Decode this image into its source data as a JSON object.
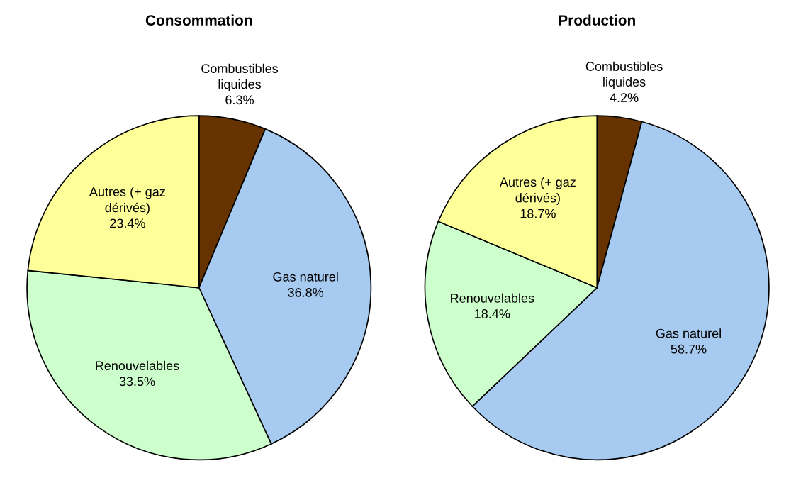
{
  "chart_data": [
    {
      "type": "pie",
      "title": "Consommation",
      "categories": [
        "Combustibles\nliquides",
        "Gas naturel",
        "Renouvelables",
        "Autres (+ gaz\ndérivés)"
      ],
      "values": [
        6.3,
        36.8,
        33.5,
        23.4
      ],
      "value_labels": [
        "6.3%",
        "36.8%",
        "33.5%",
        "23.4%"
      ],
      "colors": [
        "#663300",
        "#a6caf0",
        "#ccffcc",
        "#ffff99"
      ]
    },
    {
      "type": "pie",
      "title": "Production",
      "categories": [
        "Combustibles\nliquides",
        "Gas naturel",
        "Renouvelables",
        "Autres (+ gaz\ndérivés)"
      ],
      "values": [
        4.2,
        58.7,
        18.4,
        18.7
      ],
      "value_labels": [
        "4.2%",
        "58.7%",
        "18.4%",
        "18.7%"
      ],
      "colors": [
        "#663300",
        "#a6caf0",
        "#ccffcc",
        "#ffff99"
      ]
    }
  ]
}
